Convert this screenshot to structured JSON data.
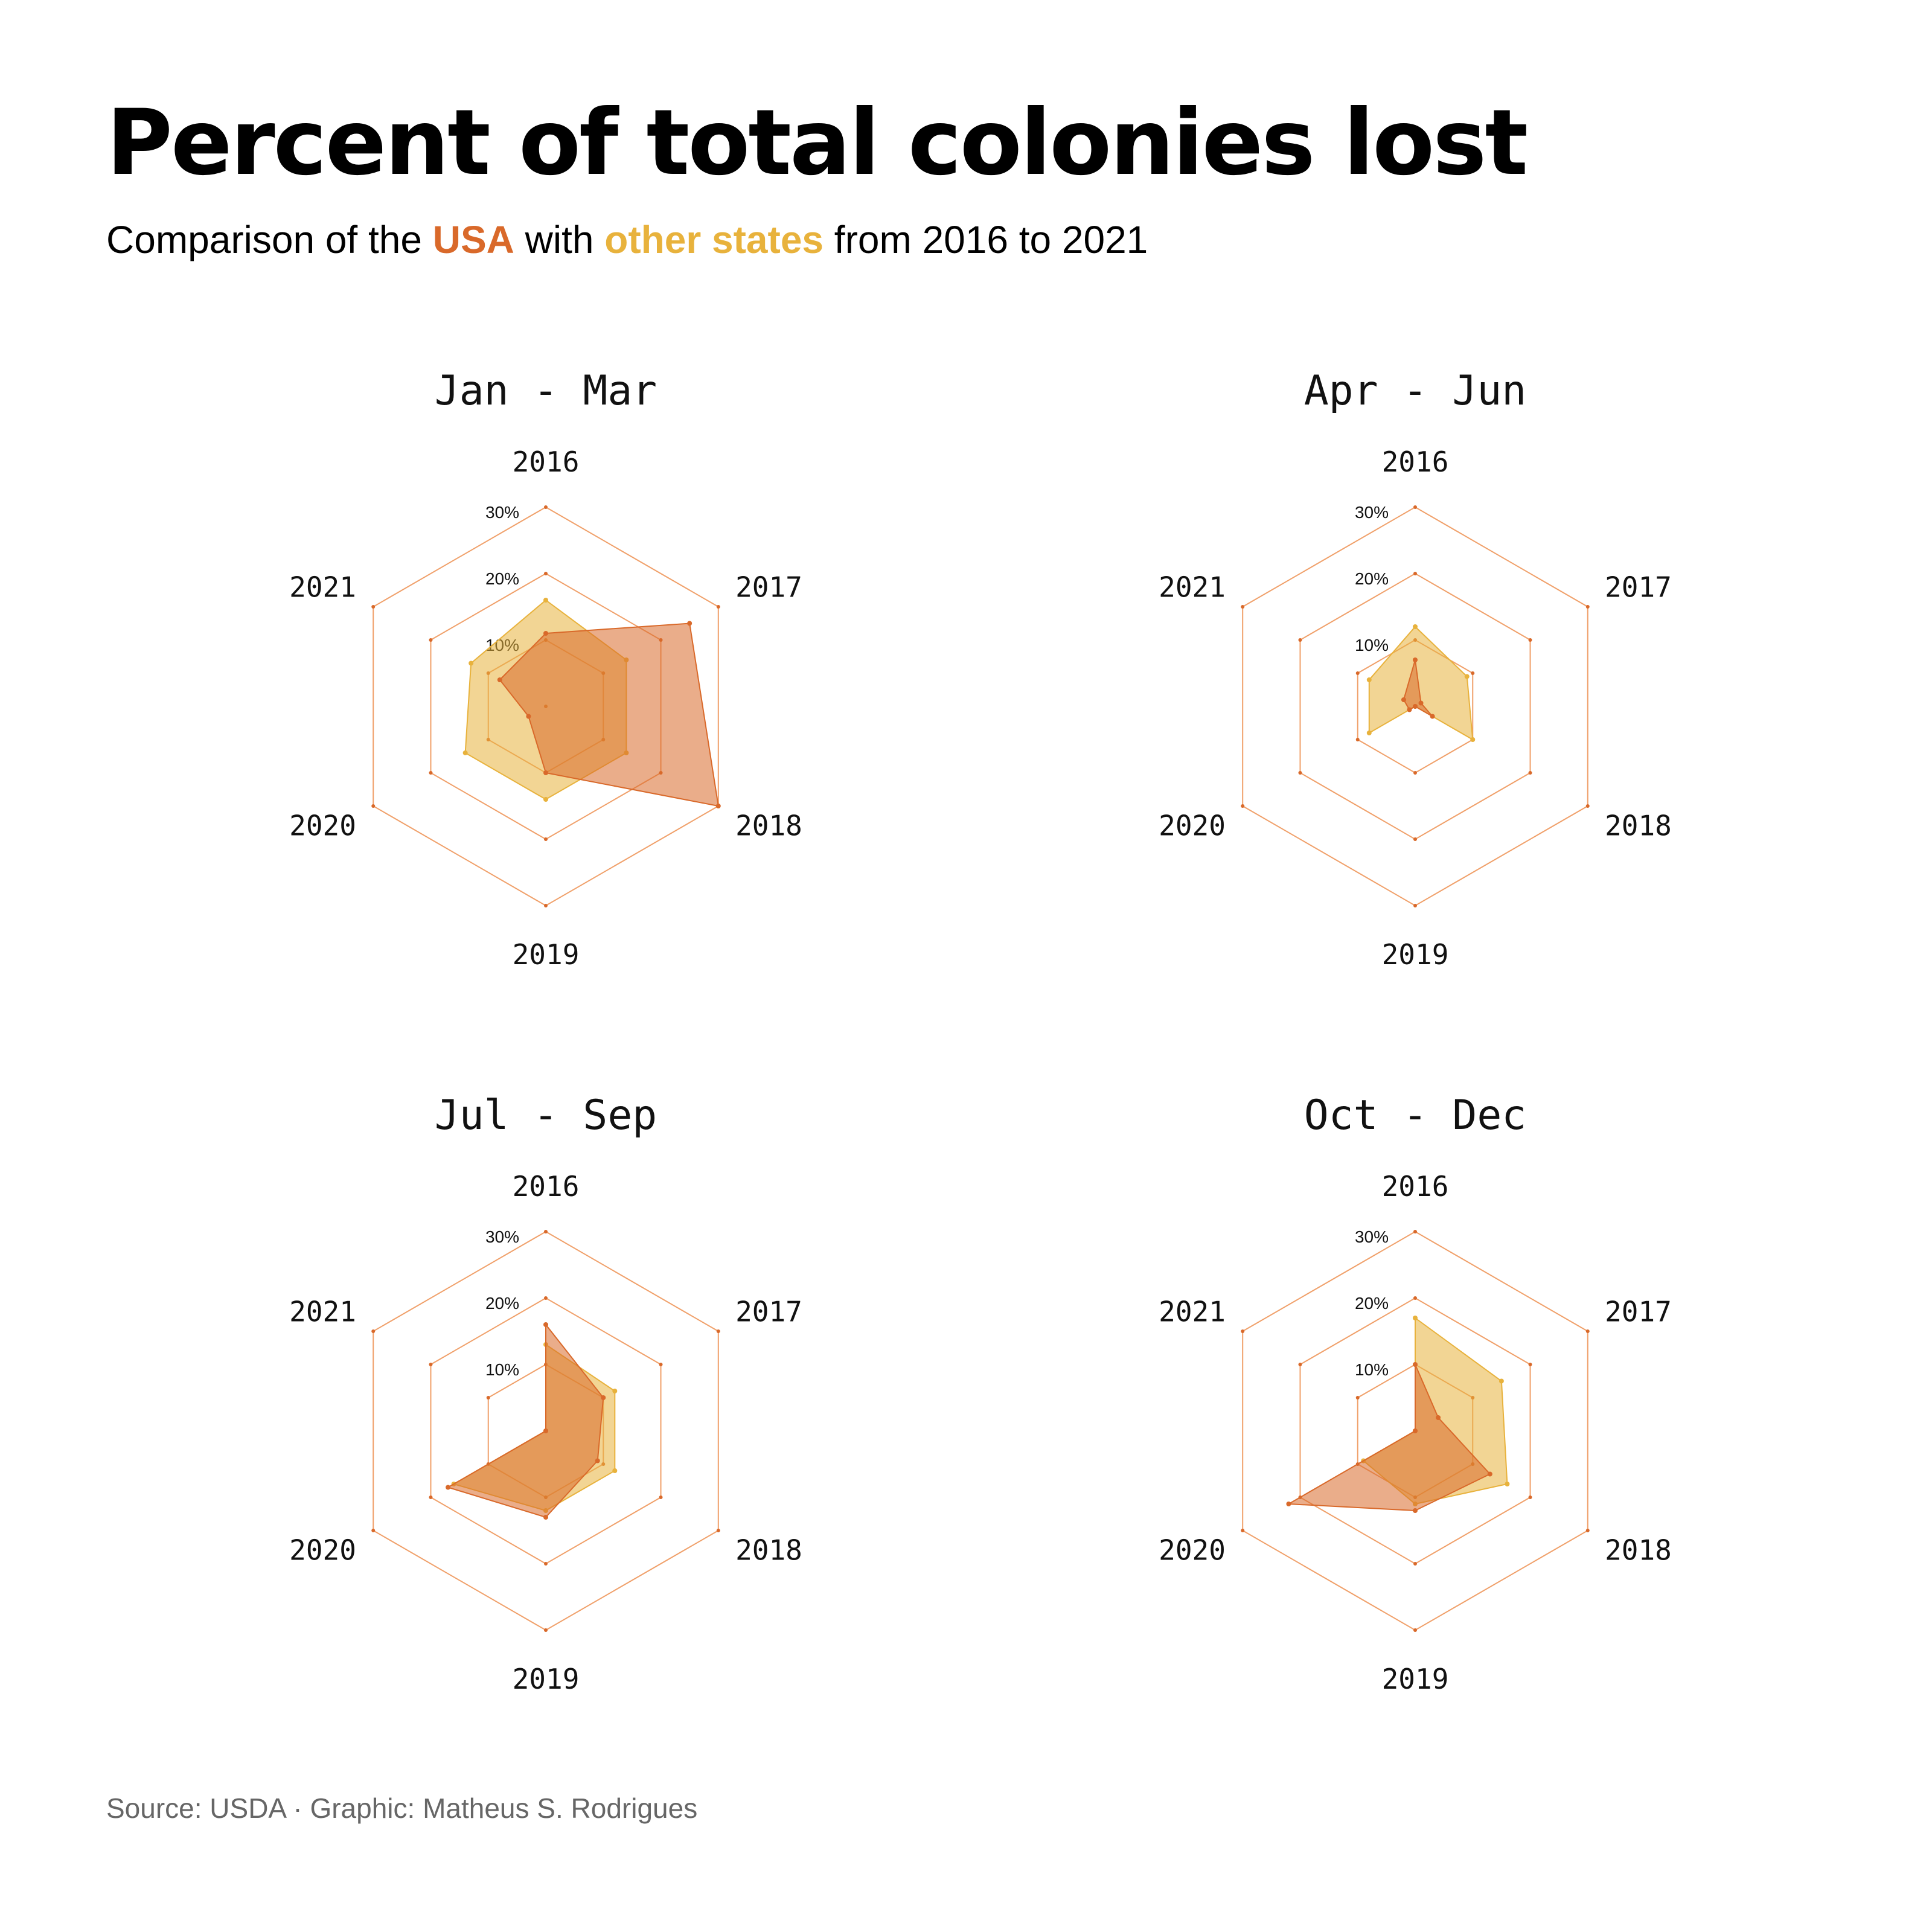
{
  "title": "Percent of total colonies lost",
  "subtitle": {
    "prefix": "Comparison of the",
    "usa": "USA",
    "middle": "with",
    "other": "other states",
    "suffix": "from 2016 to 2021"
  },
  "source": "Source: USDA · Graphic: Matheus S. Rodrigues",
  "colors": {
    "usa": "#d9692a",
    "other": "#e8b23c",
    "grid": "#f0a06a"
  },
  "chart_data": [
    {
      "type": "radar",
      "title": "Jan - Mar",
      "axes": [
        "2016",
        "2017",
        "2018",
        "2019",
        "2020",
        "2021"
      ],
      "rings": [
        10,
        20,
        30
      ],
      "ring_labels": [
        "10%",
        "20%",
        "30%"
      ],
      "rmax": 30,
      "series": [
        {
          "name": "USA",
          "values": [
            11,
            25,
            30,
            10,
            3,
            8
          ]
        },
        {
          "name": "other states",
          "values": [
            16,
            14,
            14,
            14,
            14,
            13
          ]
        }
      ]
    },
    {
      "type": "radar",
      "title": "Apr - Jun",
      "axes": [
        "2016",
        "2017",
        "2018",
        "2019",
        "2020",
        "2021"
      ],
      "rings": [
        10,
        20,
        30
      ],
      "ring_labels": [
        "10%",
        "20%",
        "30%"
      ],
      "rmax": 30,
      "series": [
        {
          "name": "USA",
          "values": [
            7,
            1,
            3,
            0,
            1,
            2
          ]
        },
        {
          "name": "other states",
          "values": [
            12,
            9,
            10,
            0,
            8,
            8
          ]
        }
      ]
    },
    {
      "type": "radar",
      "title": "Jul - Sep",
      "axes": [
        "2016",
        "2017",
        "2018",
        "2019",
        "2020",
        "2021"
      ],
      "rings": [
        10,
        20,
        30
      ],
      "ring_labels": [
        "10%",
        "20%",
        "30%"
      ],
      "rmax": 30,
      "series": [
        {
          "name": "USA",
          "values": [
            16,
            10,
            9,
            13,
            17,
            0
          ]
        },
        {
          "name": "other states",
          "values": [
            13,
            12,
            12,
            12,
            16,
            0
          ]
        }
      ]
    },
    {
      "type": "radar",
      "title": "Oct - Dec",
      "axes": [
        "2016",
        "2017",
        "2018",
        "2019",
        "2020",
        "2021"
      ],
      "rings": [
        10,
        20,
        30
      ],
      "ring_labels": [
        "10%",
        "20%",
        "30%"
      ],
      "rmax": 30,
      "series": [
        {
          "name": "USA",
          "values": [
            10,
            4,
            13,
            12,
            22,
            0
          ]
        },
        {
          "name": "other states",
          "values": [
            17,
            15,
            16,
            11,
            9,
            0
          ]
        }
      ]
    }
  ]
}
